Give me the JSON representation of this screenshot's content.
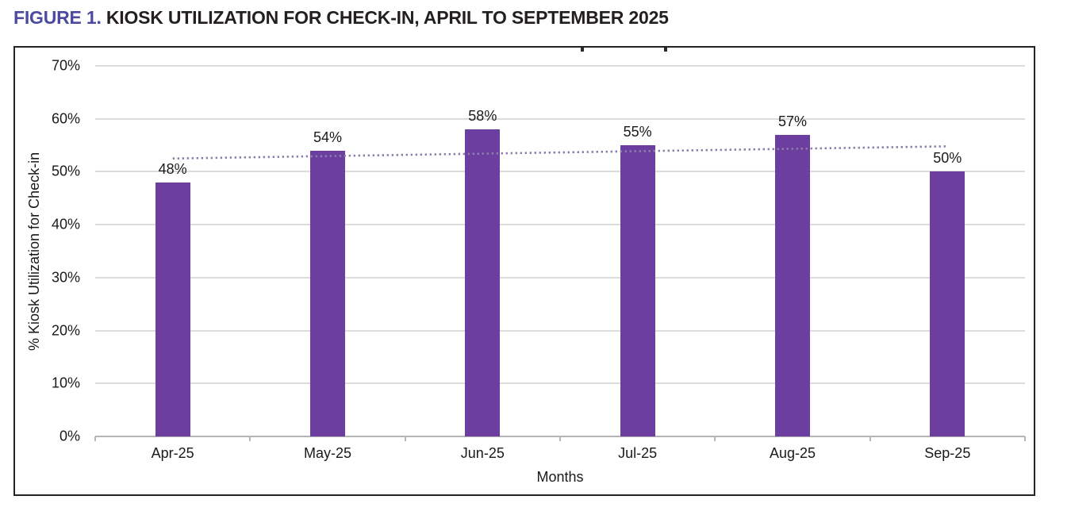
{
  "figure": {
    "label_prefix": "FIGURE 1.",
    "label_text": "KIOSK UTILIZATION FOR CHECK-IN, APRIL TO SEPTEMBER 2025"
  },
  "colors": {
    "bar": "#6C3EA0",
    "trendline": "#8C7DAA",
    "figure_label": "#4B4A9F",
    "title_text": "#231F20",
    "gridline": "#DCDCDC",
    "axis_line": "#B5B5B5",
    "chart_border": "#242424",
    "label_text": "#1A1A1A"
  },
  "chart_data": {
    "type": "bar",
    "title": "",
    "categories": [
      "Apr-25",
      "May-25",
      "Jun-25",
      "Jul-25",
      "Aug-25",
      "Sep-25"
    ],
    "values": [
      48,
      54,
      58,
      55,
      57,
      50
    ],
    "data_labels": [
      "48%",
      "54%",
      "58%",
      "55%",
      "57%",
      "50%"
    ],
    "xlabel": "Months",
    "ylabel": "% Kiosk Utilization for Check-in",
    "ylim": [
      0,
      70
    ],
    "ytick_step": 10,
    "ytick_labels": [
      "0%",
      "10%",
      "20%",
      "30%",
      "40%",
      "50%",
      "60%",
      "70%"
    ],
    "grid": true,
    "legend": "none",
    "bar_color": "#6C3EA0",
    "trendline": {
      "type": "linear",
      "style": "dotted",
      "color": "#8C7DAA",
      "start_value_pct": 52.5,
      "end_value_pct": 54.8
    }
  }
}
